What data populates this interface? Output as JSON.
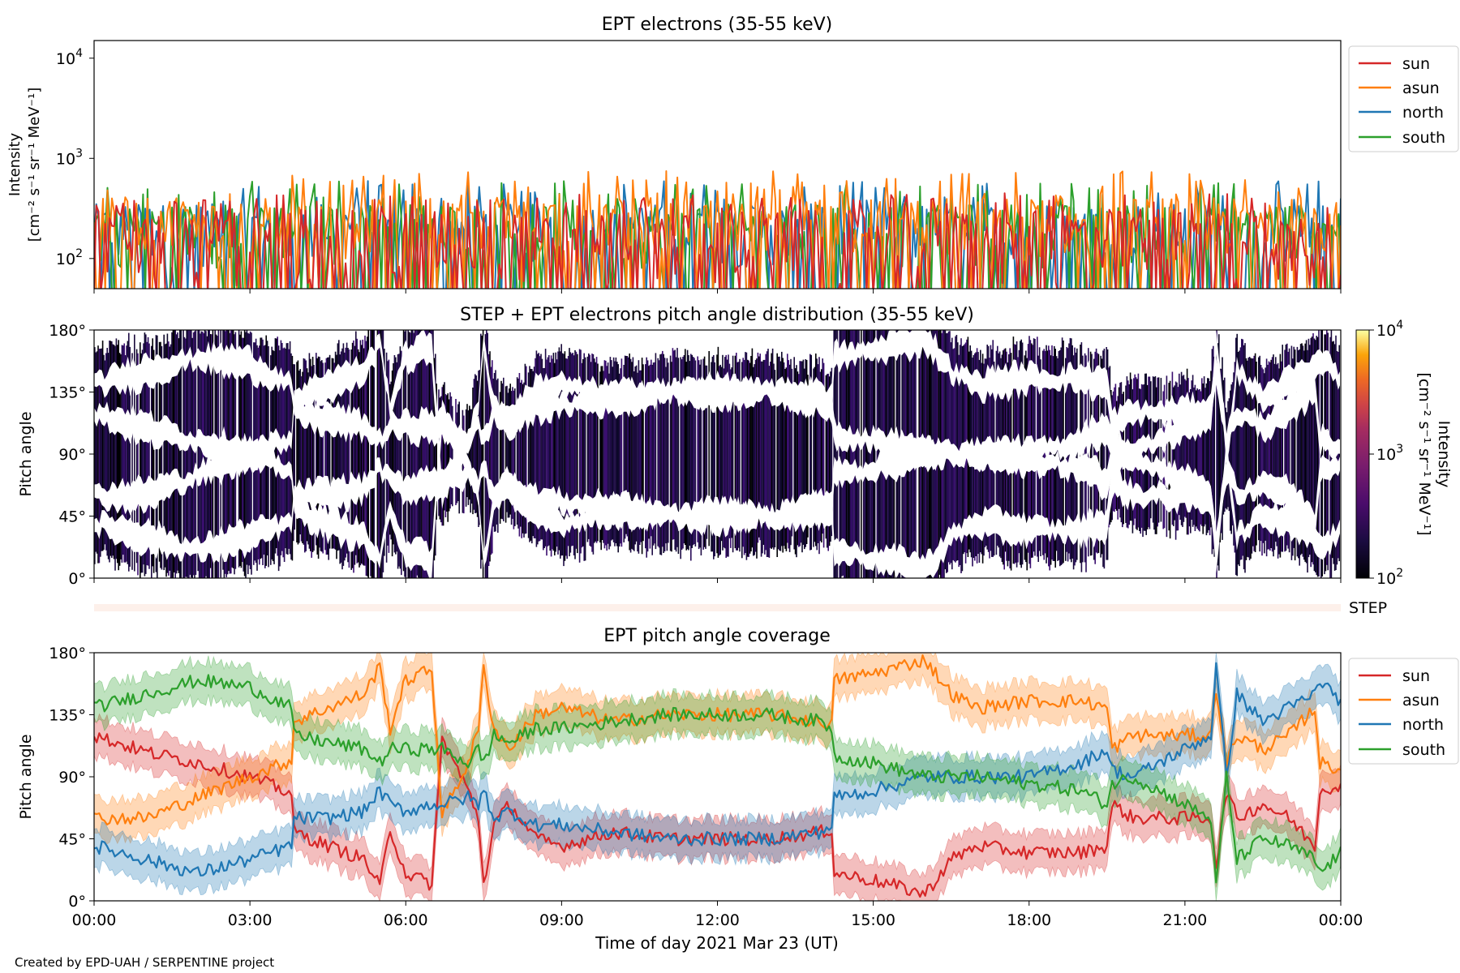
{
  "footer_credit": "Created by EPD-UAH / SERPENTINE project",
  "xlabel": "Time of day 2021 Mar 23 (UT)",
  "x_ticks": [
    "00:00",
    "03:00",
    "06:00",
    "09:00",
    "12:00",
    "15:00",
    "18:00",
    "21:00",
    "00:00"
  ],
  "pa_ticks": [
    "0°",
    "45°",
    "90°",
    "135°",
    "180°"
  ],
  "step_label": "STEP",
  "colors": {
    "sun": "#d62728",
    "asun": "#ff7f0e",
    "north": "#1f77b4",
    "south": "#2ca02c"
  },
  "chart_data": [
    {
      "type": "line",
      "title": "EPT electrons (35-55 keV)",
      "ylabel_line1": "Intensity",
      "ylabel_line2": "[cm⁻² s⁻¹ sr⁻¹ MeV⁻¹]",
      "y_scale": "log",
      "ylim": [
        50,
        15000
      ],
      "y_ticks": [
        {
          "value": 100,
          "base": "10",
          "exp": "2"
        },
        {
          "value": 1000,
          "base": "10",
          "exp": "3"
        },
        {
          "value": 10000,
          "base": "10",
          "exp": "4"
        }
      ],
      "xlim_hours": [
        0,
        24
      ],
      "legend_position": "outside-right",
      "series": [
        {
          "name": "sun",
          "typical_range": [
            50,
            300
          ],
          "peak_range": [
            300,
            450
          ]
        },
        {
          "name": "asun",
          "typical_range": [
            100,
            400
          ],
          "peak_range": [
            400,
            750
          ]
        },
        {
          "name": "north",
          "typical_range": [
            80,
            350
          ],
          "peak_range": [
            350,
            600
          ]
        },
        {
          "name": "south",
          "typical_range": [
            80,
            350
          ],
          "peak_range": [
            350,
            600
          ]
        }
      ]
    },
    {
      "type": "heatmap",
      "title": "STEP + EPT electrons pitch angle distribution (35-55 keV)",
      "ylabel": "Pitch angle",
      "ylim": [
        0,
        180
      ],
      "colorbar": {
        "label_line1": "Intensity",
        "label_line2": "[cm⁻² s⁻¹ sr⁻¹ MeV⁻¹]",
        "scale": "log",
        "range": [
          100,
          10000
        ],
        "ticks": [
          {
            "value": 100,
            "base": "10",
            "exp": "2"
          },
          {
            "value": 1000,
            "base": "10",
            "exp": "3"
          },
          {
            "value": 10000,
            "base": "10",
            "exp": "4"
          }
        ]
      }
    },
    {
      "type": "line",
      "title": "EPT pitch angle coverage",
      "ylabel": "Pitch angle",
      "ylim": [
        0,
        180
      ],
      "xlim_hours": [
        0,
        24
      ],
      "legend_position": "outside-right",
      "band_halfwidth_deg": 14,
      "series": [
        {
          "name": "sun",
          "points": [
            [
              0,
              120
            ],
            [
              1,
              108
            ],
            [
              2,
              100
            ],
            [
              3,
              90
            ],
            [
              3.8,
              78
            ],
            [
              3.85,
              50
            ],
            [
              4.5,
              40
            ],
            [
              5.2,
              30
            ],
            [
              5.5,
              10
            ],
            [
              5.7,
              52
            ],
            [
              6,
              20
            ],
            [
              6.5,
              12
            ],
            [
              6.7,
              118
            ],
            [
              7.2,
              80
            ],
            [
              7.4,
              60
            ],
            [
              7.5,
              12
            ],
            [
              7.7,
              55
            ],
            [
              8,
              70
            ],
            [
              8.5,
              45
            ],
            [
              9,
              40
            ],
            [
              10,
              50
            ],
            [
              11,
              45
            ],
            [
              12,
              45
            ],
            [
              13,
              45
            ],
            [
              14,
              50
            ],
            [
              14.2,
              52
            ],
            [
              14.25,
              20
            ],
            [
              15,
              15
            ],
            [
              16,
              5
            ],
            [
              16.5,
              30
            ],
            [
              17,
              40
            ],
            [
              18,
              35
            ],
            [
              19,
              35
            ],
            [
              19.5,
              40
            ],
            [
              19.6,
              70
            ],
            [
              20,
              60
            ],
            [
              21,
              60
            ],
            [
              21.5,
              60
            ],
            [
              21.6,
              25
            ],
            [
              21.8,
              80
            ],
            [
              22,
              60
            ],
            [
              22.5,
              70
            ],
            [
              23,
              60
            ],
            [
              23.5,
              40
            ],
            [
              23.6,
              80
            ],
            [
              24,
              85
            ]
          ]
        },
        {
          "name": "asun",
          "points": [
            [
              0,
              60
            ],
            [
              1,
              60
            ],
            [
              2,
              75
            ],
            [
              3,
              90
            ],
            [
              3.8,
              102
            ],
            [
              3.85,
              130
            ],
            [
              4.5,
              140
            ],
            [
              5.2,
              150
            ],
            [
              5.5,
              170
            ],
            [
              5.7,
              125
            ],
            [
              6,
              160
            ],
            [
              6.5,
              168
            ],
            [
              6.7,
              62
            ],
            [
              7.2,
              100
            ],
            [
              7.4,
              125
            ],
            [
              7.5,
              168
            ],
            [
              7.7,
              125
            ],
            [
              8,
              110
            ],
            [
              8.5,
              135
            ],
            [
              9,
              140
            ],
            [
              10,
              130
            ],
            [
              11,
              135
            ],
            [
              12,
              135
            ],
            [
              13,
              135
            ],
            [
              14,
              130
            ],
            [
              14.2,
              128
            ],
            [
              14.25,
              160
            ],
            [
              15,
              165
            ],
            [
              16,
              175
            ],
            [
              16.5,
              150
            ],
            [
              17,
              140
            ],
            [
              18,
              145
            ],
            [
              19,
              145
            ],
            [
              19.5,
              140
            ],
            [
              19.6,
              110
            ],
            [
              20,
              120
            ],
            [
              21,
              120
            ],
            [
              21.5,
              120
            ],
            [
              21.6,
              155
            ],
            [
              21.8,
              100
            ],
            [
              22,
              120
            ],
            [
              22.5,
              110
            ],
            [
              23,
              120
            ],
            [
              23.5,
              140
            ],
            [
              23.6,
              100
            ],
            [
              24,
              95
            ]
          ]
        },
        {
          "name": "north",
          "points": [
            [
              0,
              40
            ],
            [
              1,
              30
            ],
            [
              2,
              20
            ],
            [
              3,
              30
            ],
            [
              3.8,
              40
            ],
            [
              3.85,
              60
            ],
            [
              4.5,
              60
            ],
            [
              5.2,
              65
            ],
            [
              5.5,
              80
            ],
            [
              5.7,
              70
            ],
            [
              6,
              65
            ],
            [
              6.5,
              70
            ],
            [
              6.7,
              70
            ],
            [
              7.2,
              75
            ],
            [
              7.4,
              70
            ],
            [
              7.5,
              80
            ],
            [
              7.7,
              60
            ],
            [
              8,
              65
            ],
            [
              8.5,
              55
            ],
            [
              9,
              55
            ],
            [
              10,
              50
            ],
            [
              11,
              45
            ],
            [
              12,
              45
            ],
            [
              13,
              45
            ],
            [
              14,
              50
            ],
            [
              14.2,
              55
            ],
            [
              14.25,
              75
            ],
            [
              15,
              80
            ],
            [
              16,
              90
            ],
            [
              16.5,
              90
            ],
            [
              17,
              90
            ],
            [
              18,
              90
            ],
            [
              19,
              100
            ],
            [
              19.5,
              110
            ],
            [
              19.6,
              95
            ],
            [
              20,
              90
            ],
            [
              21,
              110
            ],
            [
              21.5,
              120
            ],
            [
              21.6,
              170
            ],
            [
              21.8,
              90
            ],
            [
              22,
              150
            ],
            [
              22.5,
              130
            ],
            [
              23,
              140
            ],
            [
              23.5,
              150
            ],
            [
              23.6,
              160
            ],
            [
              24,
              145
            ]
          ]
        },
        {
          "name": "south",
          "points": [
            [
              0,
              140
            ],
            [
              1,
              150
            ],
            [
              2,
              160
            ],
            [
              3,
              155
            ],
            [
              3.8,
              140
            ],
            [
              3.85,
              120
            ],
            [
              4.5,
              115
            ],
            [
              5.2,
              110
            ],
            [
              5.5,
              100
            ],
            [
              5.7,
              110
            ],
            [
              6,
              110
            ],
            [
              6.5,
              110
            ],
            [
              6.7,
              110
            ],
            [
              7.2,
              100
            ],
            [
              7.4,
              110
            ],
            [
              7.5,
              100
            ],
            [
              7.7,
              120
            ],
            [
              8,
              115
            ],
            [
              8.5,
              125
            ],
            [
              9,
              125
            ],
            [
              10,
              130
            ],
            [
              11,
              135
            ],
            [
              12,
              135
            ],
            [
              13,
              135
            ],
            [
              14,
              130
            ],
            [
              14.2,
              125
            ],
            [
              14.25,
              105
            ],
            [
              15,
              100
            ],
            [
              16,
              90
            ],
            [
              16.5,
              90
            ],
            [
              17,
              90
            ],
            [
              18,
              85
            ],
            [
              19,
              80
            ],
            [
              19.5,
              70
            ],
            [
              19.6,
              85
            ],
            [
              20,
              90
            ],
            [
              21,
              70
            ],
            [
              21.5,
              60
            ],
            [
              21.6,
              10
            ],
            [
              21.8,
              90
            ],
            [
              22,
              30
            ],
            [
              22.5,
              45
            ],
            [
              23,
              40
            ],
            [
              23.5,
              30
            ],
            [
              23.6,
              20
            ],
            [
              24,
              35
            ]
          ]
        }
      ]
    }
  ]
}
